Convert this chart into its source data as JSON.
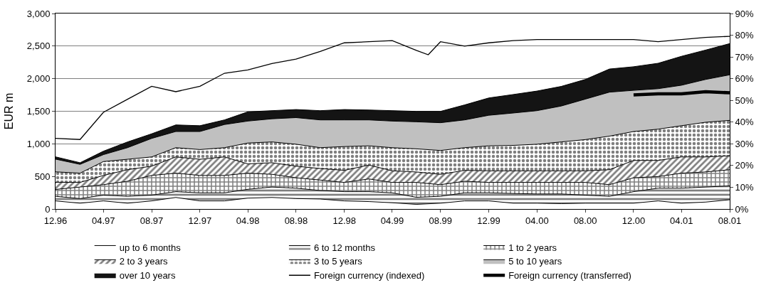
{
  "chart_data": {
    "type": "area",
    "stacked": true,
    "ylabel": "EUR m",
    "x": [
      "1996-12",
      "1997-02",
      "1997-04",
      "1997-06",
      "1997-08",
      "1997-10",
      "1997-12",
      "1998-02",
      "1998-04",
      "1998-06",
      "1998-08",
      "1998-10",
      "1998-12",
      "1999-02",
      "1999-04",
      "1999-06",
      "1999-08",
      "1999-10",
      "1999-12",
      "2000-02",
      "2000-04",
      "2000-06",
      "2000-08",
      "2000-10",
      "2000-12",
      "2001-02",
      "2001-04",
      "2001-06",
      "2001-08"
    ],
    "series": [
      {
        "name": "up to 6 months",
        "color": "#ffffff",
        "values": [
          124,
          89,
          124,
          89,
          124,
          177,
          124,
          124,
          167,
          177,
          160,
          153,
          124,
          114,
          96,
          71,
          89,
          124,
          124,
          89,
          89,
          82,
          89,
          89,
          89,
          124,
          89,
          106,
          142
        ]
      },
      {
        "name": "6 to 12 months",
        "color": "#000000",
        "values": [
          71,
          71,
          89,
          106,
          89,
          89,
          124,
          124,
          135,
          160,
          159,
          131,
          142,
          152,
          152,
          109,
          106,
          124,
          124,
          149,
          142,
          149,
          124,
          106,
          177,
          195,
          230,
          231,
          213
        ]
      },
      {
        "name": "1 to 2 years",
        "color": "#000000",
        "values": [
          105,
          177,
          160,
          231,
          302,
          284,
          267,
          267,
          248,
          195,
          160,
          160,
          142,
          195,
          160,
          228,
          178,
          178,
          160,
          170,
          177,
          177,
          195,
          178,
          213,
          178,
          231,
          231,
          248
        ]
      },
      {
        "name": "2 to 3 years",
        "color": "#000000",
        "values": [
          110,
          71,
          142,
          177,
          142,
          249,
          248,
          284,
          142,
          178,
          178,
          177,
          185,
          213,
          178,
          160,
          159,
          167,
          178,
          178,
          178,
          178,
          178,
          230,
          266,
          248,
          249,
          231,
          213
        ]
      },
      {
        "name": "3 to 5 years",
        "color": "#000000",
        "values": [
          160,
          142,
          213,
          160,
          142,
          142,
          149,
          142,
          320,
          319,
          337,
          320,
          365,
          295,
          355,
          355,
          366,
          348,
          383,
          390,
          408,
          443,
          479,
          515,
          444,
          480,
          479,
          532,
          544
        ]
      },
      {
        "name": "5 to 10 years",
        "color": "#c0c0c0",
        "values": [
          195,
          135,
          106,
          178,
          284,
          248,
          277,
          355,
          337,
          355,
          408,
          426,
          409,
          398,
          408,
          415,
          426,
          426,
          469,
          497,
          515,
          551,
          621,
          675,
          632,
          621,
          621,
          657,
          699
        ]
      },
      {
        "name": "over 10 years",
        "color": "#141414",
        "values": [
          35,
          25,
          53,
          88,
          71,
          101,
          89,
          71,
          142,
          125,
          124,
          142,
          159,
          152,
          160,
          160,
          174,
          230,
          266,
          284,
          301,
          301,
          302,
          355,
          362,
          390,
          444,
          451,
          479
        ]
      },
      {
        "name": "Foreign currency (indexed)",
        "type": "line",
        "axis": "y2",
        "color": "#000000",
        "x": [
          "1996-12",
          "1997-02",
          "1997-04",
          "1997-06",
          "1997-08",
          "1997-10",
          "1997-12",
          "1998-02",
          "1998-04",
          "1998-06",
          "1998-08",
          "1998-10",
          "1998-12",
          "1999-02",
          "1999-04",
          "1999-06",
          "1999-07",
          "1999-08",
          "1999-10",
          "1999-12",
          "2000-02",
          "2000-04",
          "2000-06",
          "2000-08",
          "2000-10",
          "2000-12",
          "2001-02",
          "2001-04",
          "2001-06",
          "2001-08"
        ],
        "values": [
          32.5,
          32,
          44.5,
          50.5,
          56.5,
          54,
          56.5,
          62.5,
          64,
          67,
          69,
          72.5,
          76.5,
          77,
          77.5,
          73,
          71,
          77,
          75,
          76.5,
          77.5,
          78,
          78,
          78,
          78,
          78,
          77,
          78,
          79,
          79.5
        ]
      },
      {
        "name": "Foreign currency (transferred)",
        "type": "line",
        "axis": "y2",
        "color": "#000000",
        "x": [
          "2000-12",
          "2001-02",
          "2001-04",
          "2001-06",
          "2001-08"
        ],
        "values": [
          52.5,
          53,
          53,
          54,
          53.5
        ]
      }
    ],
    "xlim": [
      "1996-12",
      "2001-08"
    ],
    "xticks": [
      {
        "value": "1996-12",
        "label": "12.96"
      },
      {
        "value": "1997-04",
        "label": "04.97"
      },
      {
        "value": "1997-08",
        "label": "08.97"
      },
      {
        "value": "1997-12",
        "label": "12.97"
      },
      {
        "value": "1998-04",
        "label": "04.98"
      },
      {
        "value": "1998-08",
        "label": "08.98"
      },
      {
        "value": "1998-12",
        "label": "12.98"
      },
      {
        "value": "1999-04",
        "label": "04.99"
      },
      {
        "value": "1999-08",
        "label": "08.99"
      },
      {
        "value": "1999-12",
        "label": "12.99"
      },
      {
        "value": "2000-04",
        "label": "04.00"
      },
      {
        "value": "2000-08",
        "label": "08.00"
      },
      {
        "value": "2000-12",
        "label": "12.00"
      },
      {
        "value": "2001-04",
        "label": "04.01"
      },
      {
        "value": "2001-08",
        "label": "08.01"
      }
    ],
    "ylim": [
      0,
      3000
    ],
    "yticks": [
      0,
      {
        "value": 500,
        "label": "500"
      },
      {
        "value": 1000,
        "label": "1,000"
      },
      {
        "value": 1500,
        "label": "1,500"
      },
      {
        "value": 2000,
        "label": "2,000"
      },
      {
        "value": 2500,
        "label": "2,500"
      },
      {
        "value": 3000,
        "label": "3,000"
      }
    ],
    "y2lim": [
      0,
      90
    ],
    "y2ticks": [
      {
        "value": 0,
        "label": "0%"
      },
      {
        "value": 10,
        "label": "10%"
      },
      {
        "value": 20,
        "label": "20%"
      },
      {
        "value": 30,
        "label": "30%"
      },
      {
        "value": 40,
        "label": "40%"
      },
      {
        "value": 50,
        "label": "50%"
      },
      {
        "value": 60,
        "label": "60%"
      },
      {
        "value": 70,
        "label": "70%"
      },
      {
        "value": 80,
        "label": "80%"
      },
      {
        "value": 90,
        "label": "90%"
      }
    ],
    "grid": "y",
    "legend": "bottom"
  }
}
